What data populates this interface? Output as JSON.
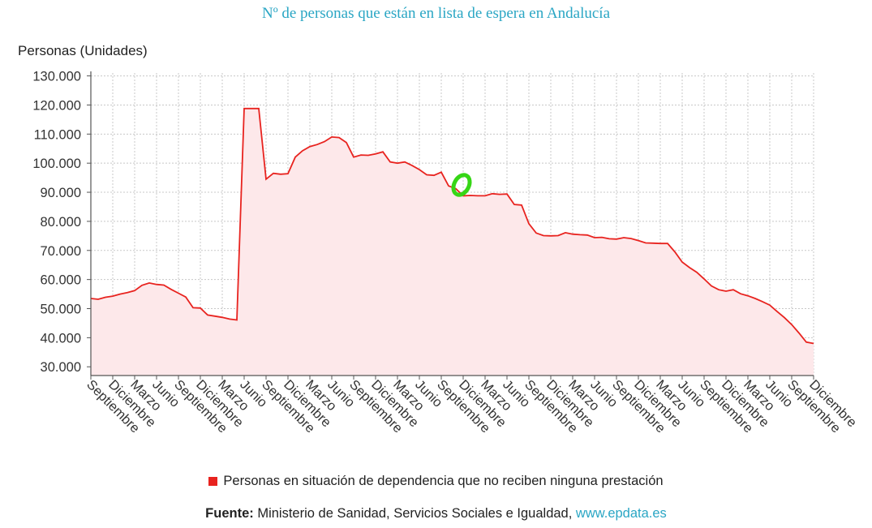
{
  "header": {
    "title": "Nº de personas que están en lista de espera en Andalucía"
  },
  "chart_data": {
    "type": "area",
    "title": "Nº de personas que están en lista de espera en Andalucía",
    "ylabel": "Personas (Unidades)",
    "xlabel": "",
    "ylim": [
      27000,
      131000
    ],
    "yticks": [
      30000,
      40000,
      50000,
      60000,
      70000,
      80000,
      90000,
      100000,
      110000,
      120000,
      130000
    ],
    "ytick_labels": [
      "30.000",
      "40.000",
      "50.000",
      "60.000",
      "70.000",
      "80.000",
      "90.000",
      "100.000",
      "110.000",
      "120.000",
      "130.000"
    ],
    "x_labels": [
      "Septiembre",
      "Diciembre",
      "Marzo",
      "Junio",
      "Septiembre",
      "Diciembre",
      "Marzo",
      "Junio",
      "Septiembre",
      "Diciembre",
      "Marzo",
      "Junio",
      "Septiembre",
      "Diciembre",
      "Marzo",
      "Junio",
      "Septiembre",
      "Diciembre",
      "Marzo",
      "Junio",
      "Septiembre",
      "Diciembre",
      "Marzo",
      "Junio",
      "Septiembre",
      "Diciembre",
      "Marzo",
      "Junio",
      "Septiembre",
      "Diciembre",
      "Marzo",
      "Junio",
      "Septiembre",
      "Diciembre"
    ],
    "grid": true,
    "legend_position": "bottom",
    "series": [
      {
        "name": "Personas en situación de dependencia que no reciben ninguna prestación",
        "color": "#e8231f",
        "fill": "#fde8ea",
        "x": [
          0,
          1,
          2,
          3,
          4,
          5,
          6,
          7,
          8,
          9,
          10,
          11,
          12,
          13,
          14,
          15,
          16,
          17,
          18,
          19,
          20,
          21,
          22,
          23,
          24,
          25,
          26,
          27,
          28,
          29,
          30,
          31,
          32,
          33,
          34,
          35,
          36,
          37,
          38,
          39,
          40,
          41,
          42,
          43,
          44,
          45,
          46,
          47,
          48,
          49,
          50,
          51,
          52,
          53,
          54,
          55,
          56,
          57,
          58,
          59,
          60,
          61,
          62,
          63,
          64,
          65,
          66,
          67,
          68,
          69,
          70,
          71,
          72,
          73,
          74,
          75,
          76,
          77,
          78,
          79,
          80,
          81,
          82,
          83,
          84,
          85,
          86,
          87,
          88,
          89,
          90,
          91,
          92,
          93,
          94,
          95,
          96,
          97,
          98,
          99
        ],
        "values": [
          53500,
          53200,
          53900,
          54300,
          55000,
          55500,
          56200,
          58000,
          58800,
          58300,
          58100,
          56600,
          55300,
          54000,
          50300,
          50200,
          47800,
          47400,
          47000,
          46400,
          46100,
          118800,
          118800,
          118800,
          94500,
          96500,
          96200,
          96400,
          102100,
          104300,
          105700,
          106400,
          107400,
          109000,
          108800,
          107100,
          102100,
          102800,
          102700,
          103200,
          103900,
          100400,
          100000,
          100400,
          99200,
          97800,
          96000,
          95800,
          96900,
          92200,
          91200,
          88800,
          88900,
          88800,
          88800,
          89500,
          89300,
          89400,
          85800,
          85600,
          79200,
          76000,
          75100,
          75000,
          75100,
          76100,
          75600,
          75400,
          75300,
          74400,
          74500,
          74000,
          73900,
          74400,
          74100,
          73400,
          72600,
          72500,
          72400,
          72400,
          69500,
          66000,
          64100,
          62500,
          60200,
          57800,
          56500,
          56000,
          56500,
          55100,
          54400,
          53500,
          52400,
          51200,
          49000,
          46900,
          44500,
          41600,
          38500,
          38000
        ]
      }
    ]
  },
  "legend": {
    "label": "Personas en situación de dependencia que no reciben ninguna prestación"
  },
  "source": {
    "label": "Fuente:",
    "text": " Ministerio de Sanidad, Servicios Sociales e Igualdad, ",
    "link": "www.epdata.es"
  },
  "annotation": {
    "color": "#36d616"
  }
}
